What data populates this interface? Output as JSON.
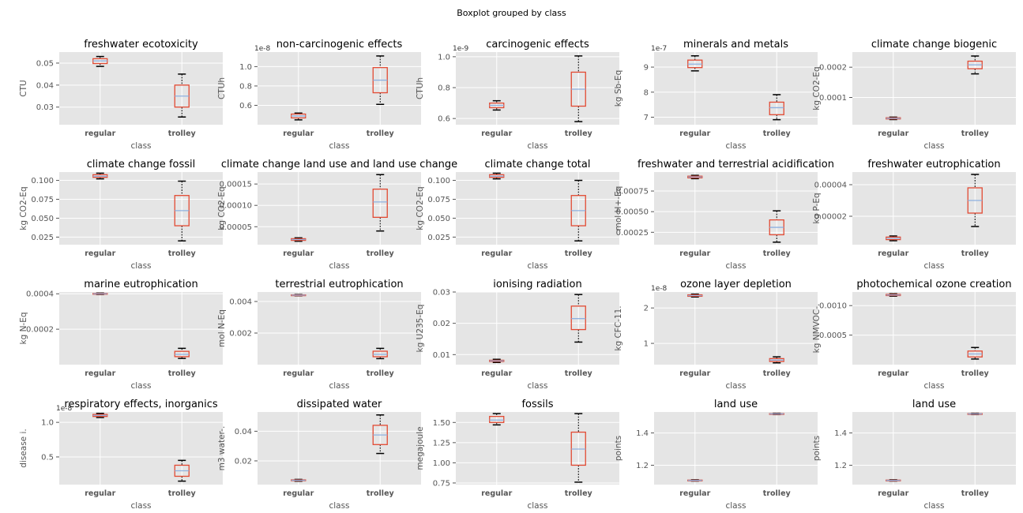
{
  "suptitle": "Boxplot grouped by class",
  "style": {
    "panel_bg": "#e5e5e5",
    "grid_color": "#ffffff",
    "box_color": "#e24a33",
    "median_color": "#8eb1e0",
    "whisker_cap_color": "#000000",
    "text_color": "#555555"
  },
  "chart_data": [
    {
      "type": "box",
      "title": "freshwater ecotoxicity",
      "ylabel": "CTU",
      "xlabel": "class",
      "categories": [
        "regular",
        "trolley"
      ],
      "ylim": [
        0.022,
        0.055
      ],
      "yticks": [
        0.03,
        0.04,
        0.05
      ],
      "ytick_labels": [
        "0.03",
        "0.04",
        "0.05"
      ],
      "offset_text": "",
      "boxes": [
        {
          "whislo": 0.0485,
          "q1": 0.0498,
          "med": 0.051,
          "q3": 0.052,
          "whishi": 0.053
        },
        {
          "whislo": 0.0255,
          "q1": 0.03,
          "med": 0.035,
          "q3": 0.04,
          "whishi": 0.045
        }
      ]
    },
    {
      "type": "box",
      "title": "non-carcinogenic effects",
      "ylabel": "CTUh",
      "xlabel": "class",
      "categories": [
        "regular",
        "trolley"
      ],
      "ylim": [
        0.4,
        1.15
      ],
      "yticks": [
        0.6,
        0.8,
        1.0
      ],
      "ytick_labels": [
        "0.6",
        "0.8",
        "1.0"
      ],
      "offset_text": "1e-8",
      "boxes": [
        {
          "whislo": 0.45,
          "q1": 0.47,
          "med": 0.49,
          "q3": 0.51,
          "whishi": 0.52
        },
        {
          "whislo": 0.61,
          "q1": 0.73,
          "med": 0.86,
          "q3": 0.99,
          "whishi": 1.11
        }
      ]
    },
    {
      "type": "box",
      "title": "carcinogenic effects",
      "ylabel": "CTUh",
      "xlabel": "class",
      "categories": [
        "regular",
        "trolley"
      ],
      "ylim": [
        0.56,
        1.03
      ],
      "yticks": [
        0.6,
        0.8,
        1.0
      ],
      "ytick_labels": [
        "0.6",
        "0.8",
        "1.0"
      ],
      "offset_text": "1e-9",
      "boxes": [
        {
          "whislo": 0.655,
          "q1": 0.67,
          "med": 0.685,
          "q3": 0.7,
          "whishi": 0.715
        },
        {
          "whislo": 0.58,
          "q1": 0.68,
          "med": 0.79,
          "q3": 0.9,
          "whishi": 1.005
        }
      ]
    },
    {
      "type": "box",
      "title": "minerals and metals",
      "ylabel": "kg Sb-Eq",
      "xlabel": "class",
      "categories": [
        "regular",
        "trolley"
      ],
      "ylim": [
        6.7,
        9.6
      ],
      "yticks": [
        7,
        8,
        9
      ],
      "ytick_labels": [
        "7",
        "8",
        "9"
      ],
      "offset_text": "1e-7",
      "boxes": [
        {
          "whislo": 8.85,
          "q1": 8.98,
          "med": 9.12,
          "q3": 9.28,
          "whishi": 9.45
        },
        {
          "whislo": 6.9,
          "q1": 7.1,
          "med": 7.38,
          "q3": 7.6,
          "whishi": 7.9
        }
      ]
    },
    {
      "type": "box",
      "title": "climate change biogenic",
      "ylabel": "kg CO2-Eq",
      "xlabel": "class",
      "categories": [
        "regular",
        "trolley"
      ],
      "ylim": [
        1e-05,
        0.00025
      ],
      "yticks": [
        0.0001,
        0.0002
      ],
      "ytick_labels": [
        "0.0001",
        "0.0002"
      ],
      "offset_text": "",
      "boxes": [
        {
          "whislo": 2.7e-05,
          "q1": 2.9e-05,
          "med": 3.1e-05,
          "q3": 3.3e-05,
          "whishi": 3.5e-05
        },
        {
          "whislo": 0.000178,
          "q1": 0.000195,
          "med": 0.000208,
          "q3": 0.00022,
          "whishi": 0.000237
        }
      ]
    },
    {
      "type": "box",
      "title": "climate change fossil",
      "ylabel": "kg CO2-Eq",
      "xlabel": "class",
      "categories": [
        "regular",
        "trolley"
      ],
      "ylim": [
        0.015,
        0.111
      ],
      "yticks": [
        0.025,
        0.05,
        0.075,
        0.1
      ],
      "ytick_labels": [
        "0.025",
        "0.050",
        "0.075",
        "0.100"
      ],
      "offset_text": "",
      "boxes": [
        {
          "whislo": 0.102,
          "q1": 0.104,
          "med": 0.1055,
          "q3": 0.1075,
          "whishi": 0.1095
        },
        {
          "whislo": 0.02,
          "q1": 0.04,
          "med": 0.06,
          "q3": 0.08,
          "whishi": 0.099
        }
      ]
    },
    {
      "type": "box",
      "title": "climate change land use and land use change",
      "ylabel": "kg CO2-Eq",
      "xlabel": "class",
      "categories": [
        "regular",
        "trolley"
      ],
      "ylim": [
        8e-06,
        0.000178
      ],
      "yticks": [
        5e-05,
        0.0001,
        0.00015
      ],
      "ytick_labels": [
        "0.00005",
        "0.00010",
        "0.00015"
      ],
      "offset_text": "",
      "boxes": [
        {
          "whislo": 1.6e-05,
          "q1": 1.8e-05,
          "med": 2e-05,
          "q3": 2.2e-05,
          "whishi": 2.4e-05
        },
        {
          "whislo": 4e-05,
          "q1": 7.2e-05,
          "med": 0.000108,
          "q3": 0.000138,
          "whishi": 0.000172
        }
      ]
    },
    {
      "type": "box",
      "title": "climate change total",
      "ylabel": "kg CO2-Eq",
      "xlabel": "class",
      "categories": [
        "regular",
        "trolley"
      ],
      "ylim": [
        0.015,
        0.111
      ],
      "yticks": [
        0.025,
        0.05,
        0.075,
        0.1
      ],
      "ytick_labels": [
        "0.025",
        "0.050",
        "0.075",
        "0.100"
      ],
      "offset_text": "",
      "boxes": [
        {
          "whislo": 0.102,
          "q1": 0.104,
          "med": 0.1055,
          "q3": 0.1075,
          "whishi": 0.1095
        },
        {
          "whislo": 0.02,
          "q1": 0.04,
          "med": 0.06,
          "q3": 0.08,
          "whishi": 0.1
        }
      ]
    },
    {
      "type": "box",
      "title": "freshwater and terrestrial acidification",
      "ylabel": "mol H+-Eq",
      "xlabel": "class",
      "categories": [
        "regular",
        "trolley"
      ],
      "ylim": [
        0.0001,
        0.00098
      ],
      "yticks": [
        0.00025,
        0.0005,
        0.00075
      ],
      "ytick_labels": [
        "0.00025",
        "0.00050",
        "0.00075"
      ],
      "offset_text": "",
      "boxes": [
        {
          "whislo": 0.0009,
          "q1": 0.00091,
          "med": 0.00092,
          "q3": 0.00093,
          "whishi": 0.00094
        },
        {
          "whislo": 0.00013,
          "q1": 0.00022,
          "med": 0.00031,
          "q3": 0.0004,
          "whishi": 0.00051
        }
      ]
    },
    {
      "type": "box",
      "title": "freshwater eutrophication",
      "ylabel": "kg P-Eq",
      "xlabel": "class",
      "categories": [
        "regular",
        "trolley"
      ],
      "ylim": [
        2e-06,
        4.8e-05
      ],
      "yticks": [
        2e-05,
        4e-05
      ],
      "ytick_labels": [
        "0.00002",
        "0.00004"
      ],
      "offset_text": "",
      "boxes": [
        {
          "whislo": 4.5e-06,
          "q1": 5.2e-06,
          "med": 6e-06,
          "q3": 6.8e-06,
          "whishi": 7.5e-06
        },
        {
          "whislo": 1.35e-05,
          "q1": 2.2e-05,
          "med": 3e-05,
          "q3": 3.8e-05,
          "whishi": 4.65e-05
        }
      ]
    },
    {
      "type": "box",
      "title": "marine eutrophication",
      "ylabel": "kg N-Eq",
      "xlabel": "class",
      "categories": [
        "regular",
        "trolley"
      ],
      "ylim": [
        0.0,
        0.00041
      ],
      "yticks": [
        0.0002,
        0.0004
      ],
      "ytick_labels": [
        "0.0002",
        "0.0004"
      ],
      "offset_text": "",
      "boxes": [
        {
          "whislo": 0.000396,
          "q1": 0.000398,
          "med": 0.0004,
          "q3": 0.000402,
          "whishi": 0.000404
        },
        {
          "whislo": 3.5e-05,
          "q1": 4.5e-05,
          "med": 5.8e-05,
          "q3": 7.5e-05,
          "whishi": 9.2e-05
        }
      ]
    },
    {
      "type": "box",
      "title": "terrestrial eutrophication",
      "ylabel": "mol N-Eq",
      "xlabel": "class",
      "categories": [
        "regular",
        "trolley"
      ],
      "ylim": [
        0.0,
        0.0046
      ],
      "yticks": [
        0.002,
        0.004
      ],
      "ytick_labels": [
        "0.002",
        "0.004"
      ],
      "offset_text": "",
      "boxes": [
        {
          "whislo": 0.00436,
          "q1": 0.00438,
          "med": 0.0044,
          "q3": 0.00442,
          "whishi": 0.00444
        },
        {
          "whislo": 0.00038,
          "q1": 0.0005,
          "med": 0.00065,
          "q3": 0.00085,
          "whishi": 0.00103
        }
      ]
    },
    {
      "type": "box",
      "title": "ionising radiation",
      "ylabel": "kg U235-Eq",
      "xlabel": "class",
      "categories": [
        "regular",
        "trolley"
      ],
      "ylim": [
        0.0068,
        0.03
      ],
      "yticks": [
        0.01,
        0.02,
        0.03
      ],
      "ytick_labels": [
        "0.01",
        "0.02",
        "0.03"
      ],
      "offset_text": "",
      "boxes": [
        {
          "whislo": 0.0075,
          "q1": 0.0078,
          "med": 0.008,
          "q3": 0.0082,
          "whishi": 0.0085
        },
        {
          "whislo": 0.014,
          "q1": 0.018,
          "med": 0.0215,
          "q3": 0.0255,
          "whishi": 0.0292
        }
      ]
    },
    {
      "type": "box",
      "title": "ozone layer depletion",
      "ylabel": "kg CFC-11.",
      "xlabel": "class",
      "categories": [
        "regular",
        "trolley"
      ],
      "ylim": [
        0.4,
        2.45
      ],
      "yticks": [
        1,
        2
      ],
      "ytick_labels": [
        "1",
        "2"
      ],
      "offset_text": "1e-8",
      "boxes": [
        {
          "whislo": 2.31,
          "q1": 2.33,
          "med": 2.35,
          "q3": 2.37,
          "whishi": 2.39
        },
        {
          "whislo": 0.45,
          "q1": 0.49,
          "med": 0.53,
          "q3": 0.57,
          "whishi": 0.62
        }
      ]
    },
    {
      "type": "box",
      "title": "photochemical ozone creation",
      "ylabel": "kg NMVOC-.",
      "xlabel": "class",
      "categories": [
        "regular",
        "trolley"
      ],
      "ylim": [
        0.0,
        0.00123
      ],
      "yticks": [
        0.0005,
        0.001
      ],
      "ytick_labels": [
        "0.0005",
        "0.0010"
      ],
      "offset_text": "",
      "boxes": [
        {
          "whislo": 0.00116,
          "q1": 0.00117,
          "med": 0.00118,
          "q3": 0.00119,
          "whishi": 0.0012
        },
        {
          "whislo": 9.5e-05,
          "q1": 0.00013,
          "med": 0.00018,
          "q3": 0.00023,
          "whishi": 0.00029
        }
      ]
    },
    {
      "type": "box",
      "title": "respiratory effects, inorganics",
      "ylabel": "disease i.",
      "xlabel": "class",
      "categories": [
        "regular",
        "trolley"
      ],
      "ylim": [
        0.1,
        1.15
      ],
      "yticks": [
        0.5,
        1.0
      ],
      "ytick_labels": [
        "0.5",
        "1.0"
      ],
      "offset_text": "1e-8",
      "boxes": [
        {
          "whislo": 1.07,
          "q1": 1.085,
          "med": 1.1,
          "q3": 1.115,
          "whishi": 1.13
        },
        {
          "whislo": 0.15,
          "q1": 0.22,
          "med": 0.3,
          "q3": 0.38,
          "whishi": 0.45
        }
      ]
    },
    {
      "type": "box",
      "title": "dissipated water",
      "ylabel": "m3 water-.",
      "xlabel": "class",
      "categories": [
        "regular",
        "trolley"
      ],
      "ylim": [
        0.004,
        0.053
      ],
      "yticks": [
        0.02,
        0.04
      ],
      "ytick_labels": [
        "0.02",
        "0.04"
      ],
      "offset_text": "",
      "boxes": [
        {
          "whislo": 0.0063,
          "q1": 0.0066,
          "med": 0.0069,
          "q3": 0.0072,
          "whishi": 0.0075
        },
        {
          "whislo": 0.025,
          "q1": 0.031,
          "med": 0.0375,
          "q3": 0.044,
          "whishi": 0.051
        }
      ]
    },
    {
      "type": "box",
      "title": "fossils",
      "ylabel": "megajoule",
      "xlabel": "class",
      "categories": [
        "regular",
        "trolley"
      ],
      "ylim": [
        0.73,
        1.63
      ],
      "yticks": [
        0.75,
        1.0,
        1.25,
        1.5
      ],
      "ytick_labels": [
        "0.75",
        "1.00",
        "1.25",
        "1.50"
      ],
      "offset_text": "",
      "boxes": [
        {
          "whislo": 1.47,
          "q1": 1.5,
          "med": 1.53,
          "q3": 1.575,
          "whishi": 1.61
        },
        {
          "whislo": 0.76,
          "q1": 0.97,
          "med": 1.17,
          "q3": 1.38,
          "whishi": 1.61
        }
      ]
    },
    {
      "type": "box",
      "title": "land use",
      "ylabel": "points",
      "xlabel": "class",
      "categories": [
        "regular",
        "trolley"
      ],
      "ylim": [
        1.08,
        1.53
      ],
      "yticks": [
        1.2,
        1.4
      ],
      "ytick_labels": [
        "1.2",
        "1.4"
      ],
      "offset_text": "",
      "boxes": [
        {
          "whislo": 1.102,
          "q1": 1.104,
          "med": 1.106,
          "q3": 1.108,
          "whishi": 1.11
        },
        {
          "whislo": 1.514,
          "q1": 1.516,
          "med": 1.518,
          "q3": 1.52,
          "whishi": 1.522
        }
      ]
    },
    {
      "type": "box",
      "title": "land use",
      "ylabel": "points",
      "xlabel": "class",
      "categories": [
        "regular",
        "trolley"
      ],
      "ylim": [
        1.08,
        1.53
      ],
      "yticks": [
        1.2,
        1.4
      ],
      "ytick_labels": [
        "1.2",
        "1.4"
      ],
      "offset_text": "",
      "boxes": [
        {
          "whislo": 1.102,
          "q1": 1.104,
          "med": 1.106,
          "q3": 1.108,
          "whishi": 1.11
        },
        {
          "whislo": 1.514,
          "q1": 1.516,
          "med": 1.518,
          "q3": 1.52,
          "whishi": 1.522
        }
      ]
    }
  ]
}
